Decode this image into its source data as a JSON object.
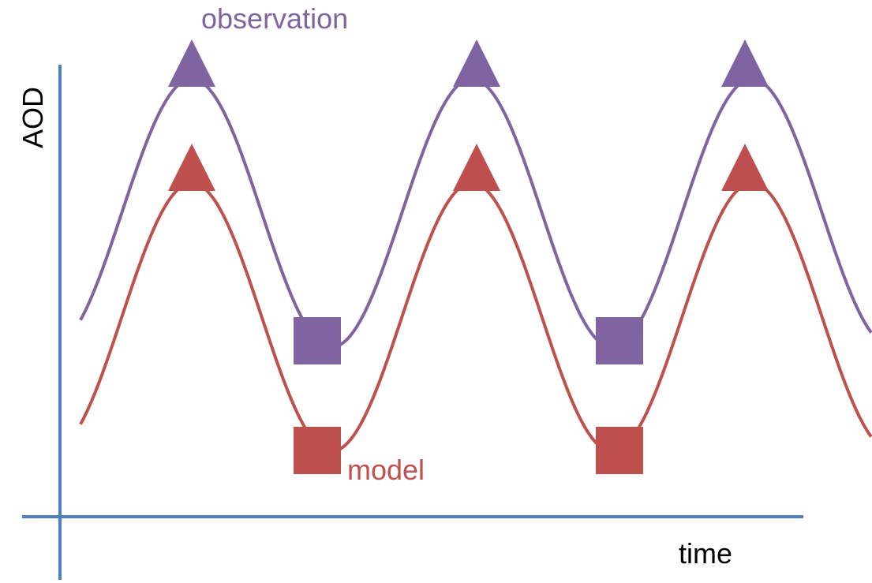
{
  "labels": {
    "y_axis": "AOD",
    "x_axis": "time",
    "observation": "observation",
    "model": "model"
  },
  "colors": {
    "axis": "#4f81bd",
    "observation": "#8064a2",
    "model": "#c0504d"
  },
  "legend_placement": "inline labels next to curves (observation at top, model near lower-left trough)",
  "series": [
    {
      "name": "observation",
      "shape": "sinusoid with 3 peaks and 2 troughs",
      "peak_marker": "triangle",
      "trough_marker": "square",
      "peaks": 3,
      "troughs": 2
    },
    {
      "name": "model",
      "shape": "sinusoid with 3 peaks and 2 troughs, offset below observation",
      "peak_marker": "triangle",
      "trough_marker": "square",
      "peaks": 3,
      "troughs": 2
    }
  ]
}
